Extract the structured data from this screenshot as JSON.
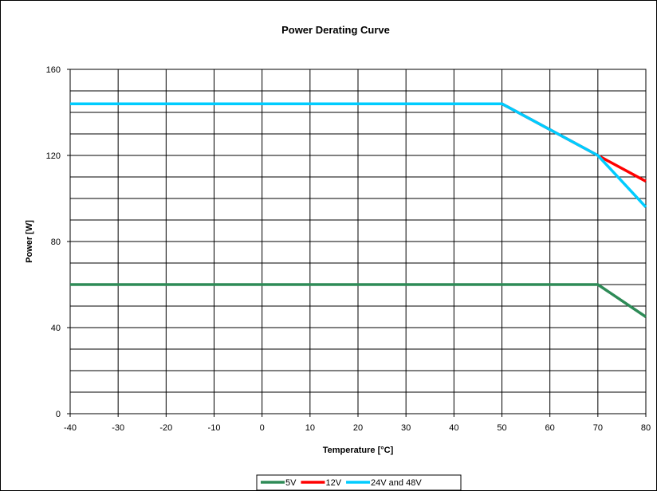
{
  "chart_data": {
    "type": "line",
    "title": "Power Derating Curve",
    "xlabel": "Temperature [°C]",
    "ylabel": "Power [W]",
    "xlim": [
      -40,
      80
    ],
    "ylim": [
      0,
      160
    ],
    "xticks": [
      -40,
      -30,
      -20,
      -10,
      0,
      10,
      20,
      30,
      40,
      50,
      60,
      70,
      80
    ],
    "yticks": [
      0,
      40,
      80,
      120,
      160
    ],
    "minor_y_step": 10,
    "grid": true,
    "legend_position": "bottom-center",
    "series": [
      {
        "name": "5V",
        "color": "#2e8b57",
        "points": [
          [
            -40,
            60
          ],
          [
            70,
            60
          ],
          [
            80,
            45
          ]
        ]
      },
      {
        "name": "12V",
        "color": "#ff0000",
        "points": [
          [
            -40,
            144
          ],
          [
            50,
            144
          ],
          [
            70,
            120
          ],
          [
            80,
            108
          ]
        ]
      },
      {
        "name": "24V and 48V",
        "color": "#00ccff",
        "points": [
          [
            -40,
            144
          ],
          [
            50,
            144
          ],
          [
            70,
            120
          ],
          [
            80,
            96
          ]
        ]
      }
    ]
  }
}
